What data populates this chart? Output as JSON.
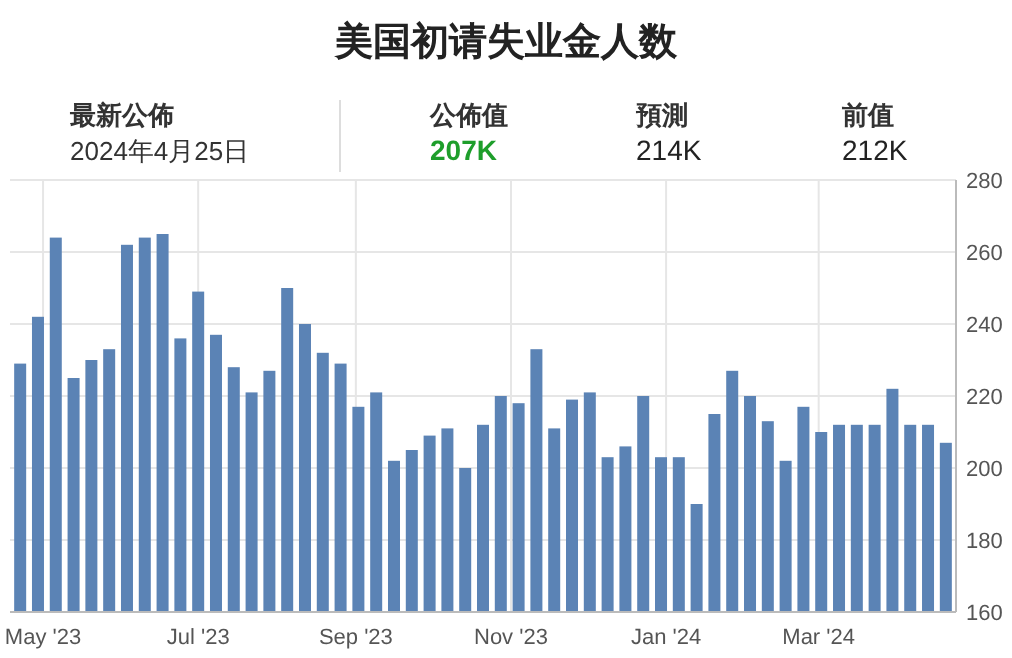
{
  "chart_data": {
    "type": "bar",
    "title": "美国初请失业金人数",
    "annotations": [
      "最新公佈",
      "2024年4月25日",
      "公佈值",
      "207K",
      "預測",
      "214K",
      "前值",
      "212K"
    ],
    "x": [
      "2023-04-22",
      "2023-04-29",
      "2023-05-06",
      "2023-05-13",
      "2023-05-20",
      "2023-05-27",
      "2023-06-03",
      "2023-06-10",
      "2023-06-17",
      "2023-06-24",
      "2023-07-01",
      "2023-07-08",
      "2023-07-15",
      "2023-07-22",
      "2023-07-29",
      "2023-08-05",
      "2023-08-12",
      "2023-08-19",
      "2023-08-26",
      "2023-09-02",
      "2023-09-09",
      "2023-09-16",
      "2023-09-23",
      "2023-09-30",
      "2023-10-07",
      "2023-10-14",
      "2023-10-21",
      "2023-10-28",
      "2023-11-04",
      "2023-11-11",
      "2023-11-18",
      "2023-11-25",
      "2023-12-02",
      "2023-12-09",
      "2023-12-16",
      "2023-12-23",
      "2023-12-30",
      "2024-01-06",
      "2024-01-13",
      "2024-01-20",
      "2024-01-27",
      "2024-02-03",
      "2024-02-10",
      "2024-02-17",
      "2024-02-24",
      "2024-03-02",
      "2024-03-09",
      "2024-03-16",
      "2024-03-23",
      "2024-03-30",
      "2024-04-06",
      "2024-04-13",
      "2024-04-20"
    ],
    "values": [
      229,
      242,
      264,
      225,
      230,
      233,
      262,
      264,
      265,
      236,
      249,
      237,
      228,
      221,
      227,
      250,
      240,
      232,
      229,
      217,
      221,
      202,
      205,
      209,
      211,
      200,
      212,
      220,
      218,
      233,
      211,
      219,
      221,
      203,
      206,
      220,
      203,
      203,
      190,
      215,
      227,
      220,
      213,
      202,
      217,
      210,
      212,
      212,
      212,
      222,
      212,
      212,
      207
    ],
    "color": "#5b83b5",
    "xlim": [
      "2023-04-18",
      "2024-04-24"
    ],
    "xticks": [
      {
        "value": "2023-05-01",
        "label": "May '23"
      },
      {
        "value": "2023-07-01",
        "label": "Jul '23"
      },
      {
        "value": "2023-09-01",
        "label": "Sep '23"
      },
      {
        "value": "2023-11-01",
        "label": "Nov '23"
      },
      {
        "value": "2024-01-01",
        "label": "Jan '24"
      },
      {
        "value": "2024-03-01",
        "label": "Mar '24"
      }
    ],
    "ylim": [
      160,
      280
    ],
    "yticks": [
      160,
      180,
      200,
      220,
      240,
      260,
      280
    ],
    "grid": true
  }
}
